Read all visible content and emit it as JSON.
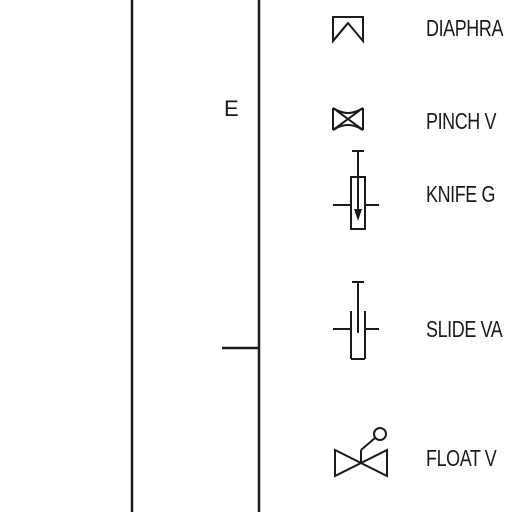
{
  "section": {
    "letter": "E"
  },
  "valves": [
    {
      "label": "DIAPHRA",
      "icon": "diaphragm-valve-icon"
    },
    {
      "label": "PINCH V",
      "icon": "pinch-valve-icon"
    },
    {
      "label": "KNIFE G",
      "icon": "knife-gate-valve-icon"
    },
    {
      "label": "SLIDE VA",
      "icon": "slide-valve-icon"
    },
    {
      "label": "FLOAT V",
      "icon": "float-valve-icon"
    }
  ],
  "colors": {
    "ink": "#1a1a1a",
    "background": "#ffffff"
  }
}
